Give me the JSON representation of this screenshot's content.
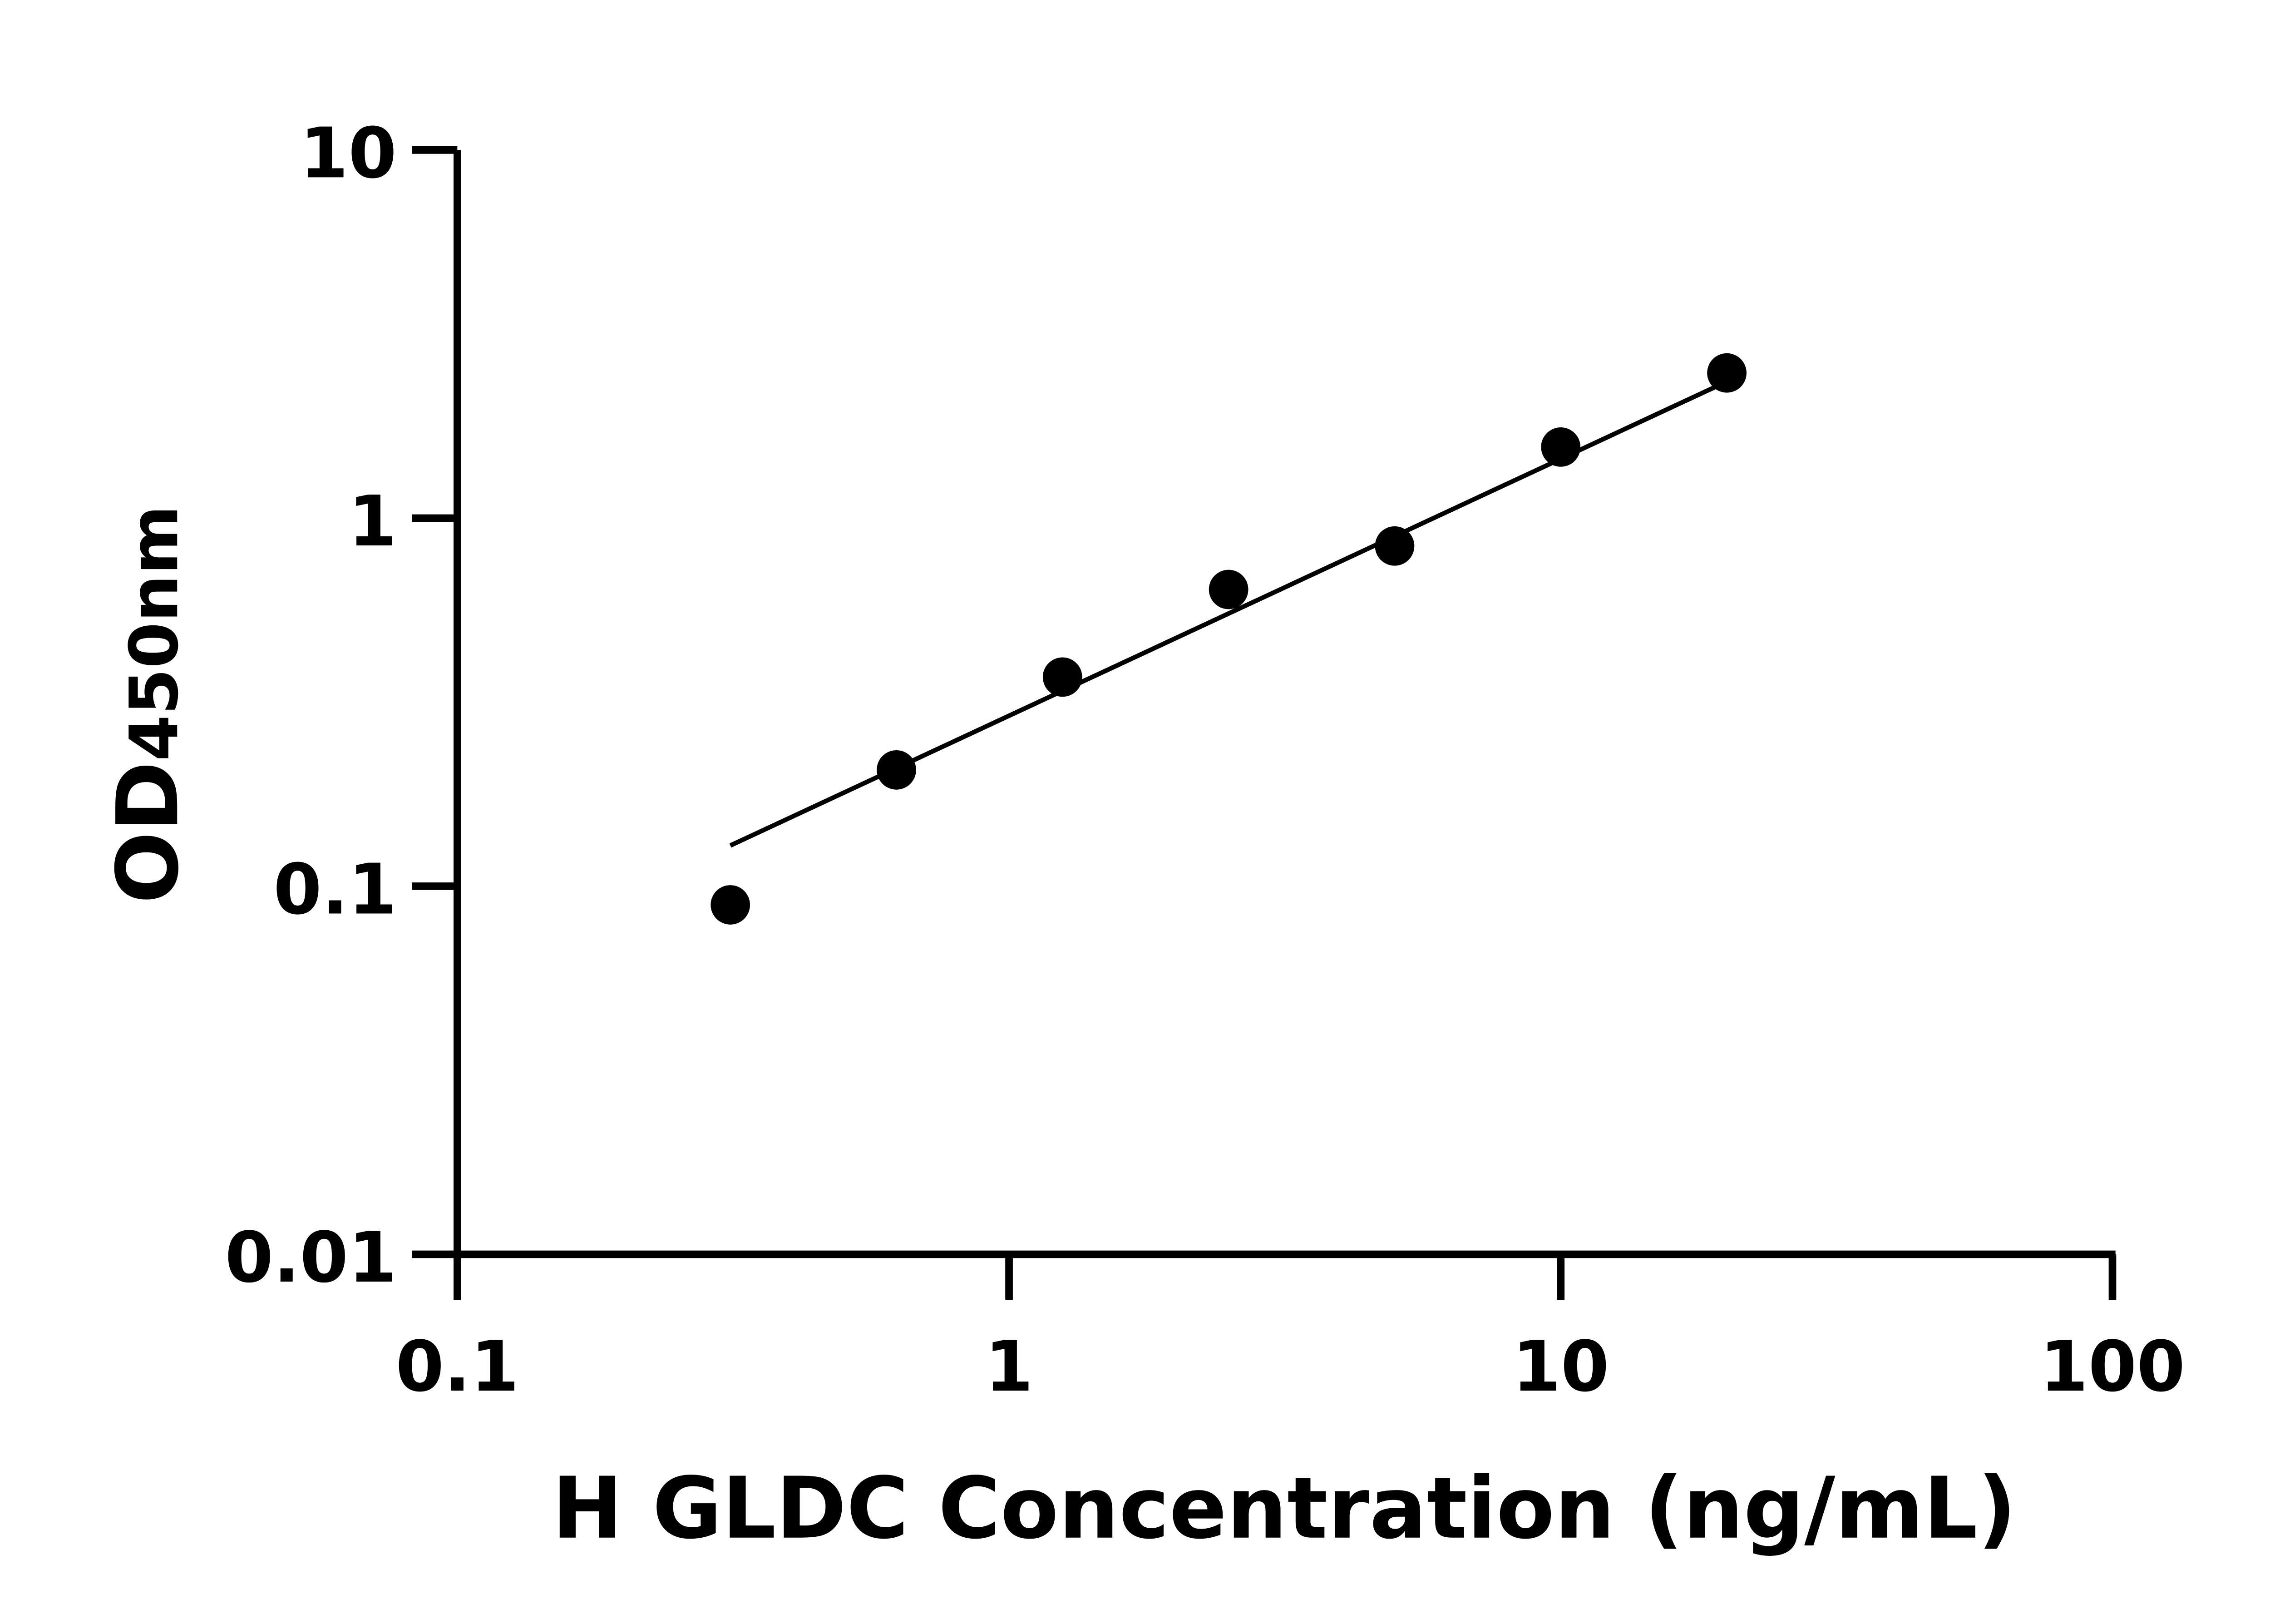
{
  "chart_data": {
    "type": "scatter",
    "title": "",
    "xlabel": "H GLDC Concentration (ng/mL)",
    "ylabel_main": "OD",
    "ylabel_sub": "450nm",
    "x_scale": "log",
    "y_scale": "log",
    "xlim": [
      0.1,
      100
    ],
    "ylim": [
      0.01,
      10
    ],
    "x_ticks": [
      0.1,
      1,
      10,
      100
    ],
    "x_tick_labels": [
      "0.1",
      "1",
      "10",
      "100"
    ],
    "y_ticks": [
      0.01,
      0.1,
      1,
      10
    ],
    "y_tick_labels": [
      "0.01",
      "0.1",
      "1",
      "10"
    ],
    "grid": false,
    "series": [
      {
        "x": [
          0.3125,
          0.625,
          1.25,
          2.5,
          5,
          10,
          20
        ],
        "y": [
          0.089,
          0.207,
          0.37,
          0.64,
          0.84,
          1.56,
          2.48
        ],
        "color": "#000000"
      }
    ],
    "fit_line": {
      "x": [
        0.3125,
        20
      ],
      "y": [
        0.129,
        2.35
      ],
      "color": "#000000"
    }
  }
}
